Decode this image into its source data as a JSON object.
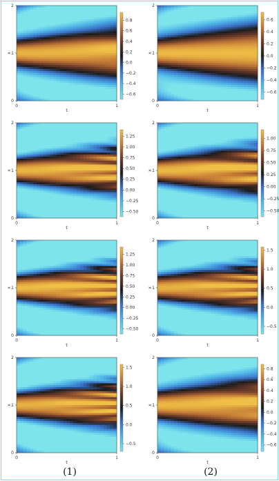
{
  "colormap": [
    "#7ee4ec",
    "#4fb6e8",
    "#3a72c8",
    "#1b1b1b",
    "#6b3a2a",
    "#c47a36",
    "#f0c046"
  ],
  "columns": [
    {
      "caption": "(1)"
    },
    {
      "caption": "(2)"
    }
  ],
  "chart_data": [
    {
      "type": "heatmap",
      "column": 1,
      "row": 1,
      "xlabel": "t",
      "ylabel": "x",
      "x_ticks": [
        "0",
        "1"
      ],
      "y_ticks": [
        "0",
        "1",
        "2"
      ],
      "xlim": [
        0,
        1
      ],
      "ylim": [
        0,
        2
      ],
      "colorbar": {
        "min": -0.7,
        "max": 0.95,
        "ticks": [
          -0.6,
          -0.4,
          -0.2,
          0.0,
          0.2,
          0.4,
          0.6,
          0.8
        ],
        "tick_labels": [
          "−0.6",
          "−0.4",
          "−0.2",
          "0.0",
          "0.2",
          "0.4",
          "0.6",
          "0.8"
        ]
      },
      "pattern": {
        "amp": 0.9,
        "stripes": 2,
        "fade": 0.15
      }
    },
    {
      "type": "heatmap",
      "column": 2,
      "row": 1,
      "xlabel": "t",
      "ylabel": "x",
      "x_ticks": [
        "0",
        "1"
      ],
      "y_ticks": [
        "0",
        "1",
        "2"
      ],
      "xlim": [
        0,
        1
      ],
      "ylim": [
        0,
        2
      ],
      "colorbar": {
        "min": -0.72,
        "max": 0.72,
        "ticks": [
          -0.6,
          -0.4,
          -0.2,
          0.0,
          0.2,
          0.4,
          0.6
        ],
        "tick_labels": [
          "−0.6",
          "−0.4",
          "−0.2",
          "0.0",
          "0.2",
          "0.4",
          "0.6"
        ]
      },
      "pattern": {
        "amp": 0.7,
        "stripes": 0,
        "fade": 0.05
      }
    },
    {
      "type": "heatmap",
      "column": 1,
      "row": 2,
      "xlabel": "t",
      "ylabel": "x",
      "x_ticks": [
        "0",
        "1"
      ],
      "y_ticks": [
        "0",
        "1",
        "2"
      ],
      "xlim": [
        0,
        1
      ],
      "ylim": [
        0,
        2
      ],
      "colorbar": {
        "min": -0.62,
        "max": 1.4,
        "ticks": [
          -0.5,
          -0.25,
          0.0,
          0.25,
          0.5,
          0.75,
          1.0,
          1.25
        ],
        "tick_labels": [
          "−0.50",
          "−0.25",
          "0.00",
          "0.25",
          "0.50",
          "0.75",
          "1.00",
          "1.25"
        ]
      },
      "pattern": {
        "amp": 1.35,
        "stripes": 5,
        "fade": 0.55
      }
    },
    {
      "type": "heatmap",
      "column": 2,
      "row": 2,
      "xlabel": "t",
      "ylabel": "x",
      "x_ticks": [
        "0",
        "1"
      ],
      "y_ticks": [
        "0",
        "1",
        "2"
      ],
      "xlim": [
        0,
        1
      ],
      "ylim": [
        0,
        2
      ],
      "colorbar": {
        "min": -0.62,
        "max": 1.18,
        "ticks": [
          -0.5,
          -0.25,
          0.0,
          0.25,
          0.5,
          0.75,
          1.0
        ],
        "tick_labels": [
          "−0.50",
          "−0.25",
          "0.00",
          "0.25",
          "0.50",
          "0.75",
          "1.00"
        ]
      },
      "pattern": {
        "amp": 1.15,
        "stripes": 4,
        "fade": 0.5
      }
    },
    {
      "type": "heatmap",
      "column": 1,
      "row": 3,
      "xlabel": "t",
      "ylabel": "x",
      "x_ticks": [
        "0",
        "1"
      ],
      "y_ticks": [
        "0",
        "1",
        "2"
      ],
      "xlim": [
        0,
        1
      ],
      "ylim": [
        0,
        2
      ],
      "colorbar": {
        "min": -0.62,
        "max": 1.42,
        "ticks": [
          -0.5,
          -0.25,
          0.0,
          0.25,
          0.5,
          0.75,
          1.0,
          1.25
        ],
        "tick_labels": [
          "−0.50",
          "−0.25",
          "0.00",
          "0.25",
          "0.50",
          "0.75",
          "1.00",
          "1.25"
        ]
      },
      "pattern": {
        "amp": 1.4,
        "stripes": 6,
        "fade": 0.6
      }
    },
    {
      "type": "heatmap",
      "column": 2,
      "row": 3,
      "xlabel": "t",
      "ylabel": "x",
      "x_ticks": [
        "0",
        "1"
      ],
      "y_ticks": [
        "0",
        "1",
        "2"
      ],
      "xlim": [
        0,
        1
      ],
      "ylim": [
        0,
        2
      ],
      "colorbar": {
        "min": -0.7,
        "max": 1.58,
        "ticks": [
          -0.5,
          0.0,
          0.5,
          1.0,
          1.5
        ],
        "tick_labels": [
          "−0.5",
          "0.0",
          "0.5",
          "1.0",
          "1.5"
        ]
      },
      "pattern": {
        "amp": 1.5,
        "stripes": 6,
        "fade": 0.6
      }
    },
    {
      "type": "heatmap",
      "column": 1,
      "row": 4,
      "xlabel": "t",
      "ylabel": "x",
      "x_ticks": [
        "0",
        "1"
      ],
      "y_ticks": [
        "0",
        "1",
        "2"
      ],
      "xlim": [
        0,
        1
      ],
      "ylim": [
        0,
        2
      ],
      "colorbar": {
        "min": -0.7,
        "max": 1.58,
        "ticks": [
          -0.5,
          0.0,
          0.5,
          1.0,
          1.5
        ],
        "tick_labels": [
          "−0.5",
          "0.0",
          "0.5",
          "1.0",
          "1.5"
        ]
      },
      "pattern": {
        "amp": 1.5,
        "stripes": 6,
        "fade": 0.6
      }
    },
    {
      "type": "heatmap",
      "column": 2,
      "row": 4,
      "xlabel": "t",
      "ylabel": "x",
      "x_ticks": [
        "0",
        "1"
      ],
      "y_ticks": [
        "0",
        "1",
        "2"
      ],
      "xlim": [
        0,
        1
      ],
      "ylim": [
        0,
        2
      ],
      "colorbar": {
        "min": -0.72,
        "max": 0.88,
        "ticks": [
          -0.6,
          -0.4,
          -0.2,
          0.0,
          0.2,
          0.4,
          0.6,
          0.8
        ],
        "tick_labels": [
          "−0.6",
          "−0.4",
          "−0.2",
          "0.0",
          "0.2",
          "0.4",
          "0.6",
          "0.8"
        ]
      },
      "pattern": {
        "amp": 0.85,
        "stripes": 3,
        "fade": 0.2
      }
    }
  ]
}
